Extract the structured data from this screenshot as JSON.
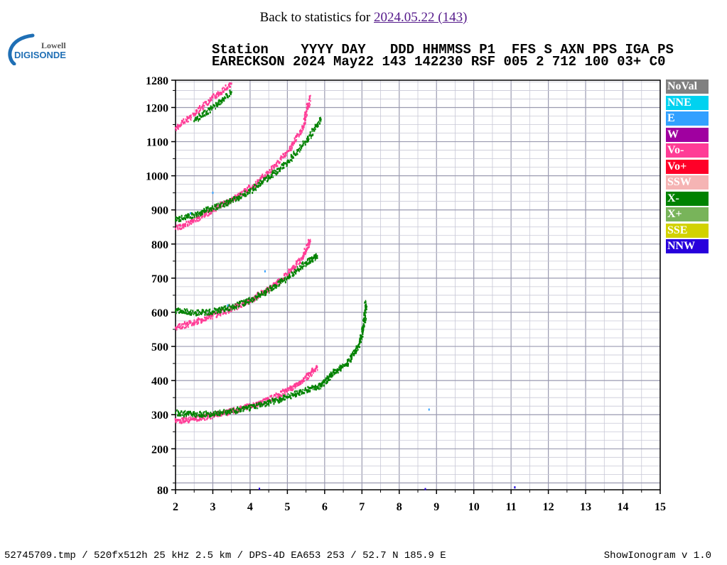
{
  "nav": {
    "prefix": "Back to statistics for ",
    "link": "2024.05.22 (143)"
  },
  "logo": {
    "line1": "Lowell",
    "line2": "DIGISONDE"
  },
  "header": {
    "labels": "Station    YYYY DAY   DDD HHMMSS P1  FFS S AXN PPS IGA PS",
    "values": "EARECKSON 2024 May22 143 142230 RSF 005 2 712 100 03+ C0"
  },
  "legend": [
    {
      "label": "NoVal",
      "color": "#808080"
    },
    {
      "label": "NNE",
      "color": "#00d2f0"
    },
    {
      "label": "E",
      "color": "#32a0ff"
    },
    {
      "label": "W",
      "color": "#a000a0"
    },
    {
      "label": "Vo-",
      "color": "#ff3c96"
    },
    {
      "label": "Vo+",
      "color": "#ff0028"
    },
    {
      "label": "SSW",
      "color": "#f5b4b4"
    },
    {
      "label": "X-",
      "color": "#008200"
    },
    {
      "label": "X+",
      "color": "#78b45a"
    },
    {
      "label": "SSE",
      "color": "#d2d200"
    },
    {
      "label": "NNW",
      "color": "#2800dc"
    }
  ],
  "footer": {
    "left": "52745709.tmp / 520fx512h 25 kHz 2.5 km / DPS-4D EA653 253 / 52.7 N 185.9 E",
    "right": "ShowIonogram v 1.0"
  },
  "chart_data": {
    "type": "scatter",
    "xlabel": "",
    "ylabel": "",
    "xlim": [
      2,
      15
    ],
    "ylim": [
      80,
      1280
    ],
    "xticks": [
      2,
      3,
      4,
      5,
      6,
      7,
      8,
      9,
      10,
      11,
      12,
      13,
      14,
      15
    ],
    "yticks": [
      80,
      200,
      300,
      400,
      500,
      600,
      700,
      800,
      900,
      1000,
      1100,
      1200,
      1280
    ],
    "grid": true,
    "legend_position": "right",
    "series": [
      {
        "name": "Vo-",
        "color": "#ff3c96",
        "points": [
          [
            2.0,
            280
          ],
          [
            2.5,
            287
          ],
          [
            3.0,
            297
          ],
          [
            3.5,
            310
          ],
          [
            4.0,
            325
          ],
          [
            4.5,
            345
          ],
          [
            5.0,
            370
          ],
          [
            5.4,
            400
          ],
          [
            5.8,
            440
          ],
          [
            2.0,
            555
          ],
          [
            2.5,
            570
          ],
          [
            3.0,
            590
          ],
          [
            3.5,
            610
          ],
          [
            4.0,
            635
          ],
          [
            4.5,
            670
          ],
          [
            5.0,
            710
          ],
          [
            5.4,
            760
          ],
          [
            5.6,
            810
          ],
          [
            2.0,
            845
          ],
          [
            2.5,
            870
          ],
          [
            3.0,
            900
          ],
          [
            3.5,
            930
          ],
          [
            4.0,
            965
          ],
          [
            4.5,
            1010
          ],
          [
            5.0,
            1070
          ],
          [
            5.4,
            1140
          ],
          [
            5.6,
            1230
          ],
          [
            2.0,
            1140
          ],
          [
            2.5,
            1180
          ],
          [
            3.0,
            1230
          ],
          [
            3.5,
            1270
          ]
        ]
      },
      {
        "name": "X-",
        "color": "#008200",
        "points": [
          [
            2.0,
            305
          ],
          [
            2.5,
            300
          ],
          [
            3.0,
            302
          ],
          [
            3.5,
            310
          ],
          [
            4.0,
            320
          ],
          [
            4.5,
            335
          ],
          [
            5.0,
            352
          ],
          [
            5.5,
            372
          ],
          [
            5.9,
            385
          ],
          [
            6.2,
            420
          ],
          [
            6.6,
            450
          ],
          [
            6.9,
            500
          ],
          [
            7.05,
            560
          ],
          [
            7.1,
            630
          ],
          [
            2.0,
            605
          ],
          [
            2.5,
            598
          ],
          [
            3.0,
            602
          ],
          [
            3.5,
            615
          ],
          [
            4.0,
            635
          ],
          [
            4.5,
            665
          ],
          [
            5.0,
            700
          ],
          [
            5.5,
            745
          ],
          [
            5.8,
            765
          ],
          [
            2.0,
            870
          ],
          [
            2.5,
            885
          ],
          [
            3.0,
            905
          ],
          [
            3.5,
            925
          ],
          [
            4.0,
            955
          ],
          [
            4.5,
            995
          ],
          [
            5.0,
            1040
          ],
          [
            5.5,
            1100
          ],
          [
            5.9,
            1165
          ],
          [
            2.5,
            1160
          ],
          [
            3.0,
            1200
          ],
          [
            3.5,
            1245
          ]
        ]
      },
      {
        "name": "E",
        "color": "#32a0ff",
        "points": [
          [
            2.4,
            890
          ],
          [
            3.0,
            950
          ],
          [
            3.4,
            620
          ],
          [
            4.4,
            720
          ],
          [
            8.8,
            315
          ],
          [
            11.1,
            87
          ]
        ]
      },
      {
        "name": "NNW",
        "color": "#2800dc",
        "points": [
          [
            4.25,
            83
          ],
          [
            11.1,
            87
          ],
          [
            8.7,
            82
          ]
        ]
      }
    ]
  }
}
